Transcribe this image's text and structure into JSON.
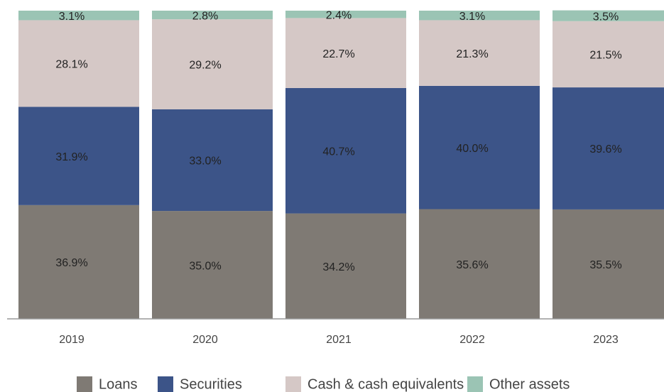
{
  "chart_data": {
    "type": "stacked-bar",
    "categories": [
      "2019",
      "2020",
      "2021",
      "2022",
      "2023"
    ],
    "series": [
      {
        "name": "Loans",
        "color": "#7f7a74",
        "values": [
          36.9,
          35.0,
          34.2,
          35.6,
          35.5
        ],
        "value_labels": [
          "36.9%",
          "35.0%",
          "34.2%",
          "35.6%",
          "35.5%"
        ]
      },
      {
        "name": "Securities",
        "color": "#3c5488",
        "values": [
          31.9,
          33.0,
          40.7,
          40.0,
          39.6
        ],
        "value_labels": [
          "31.9%",
          "33.0%",
          "40.7%",
          "40.0%",
          "39.6%"
        ]
      },
      {
        "name": "Cash & cash equivalents",
        "color": "#d5c8c6",
        "values": [
          28.1,
          29.2,
          22.7,
          21.3,
          21.5
        ],
        "value_labels": [
          "28.1%",
          "29.2%",
          "22.7%",
          "21.3%",
          "21.5%"
        ]
      },
      {
        "name": "Other assets",
        "color": "#9bc4b4",
        "values": [
          3.1,
          2.8,
          2.4,
          3.1,
          3.5
        ],
        "value_labels": [
          "3.1%",
          "2.8%",
          "2.4%",
          "3.1%",
          "3.5%"
        ]
      }
    ],
    "ylim": [
      0,
      100
    ],
    "legend": "bottom"
  }
}
